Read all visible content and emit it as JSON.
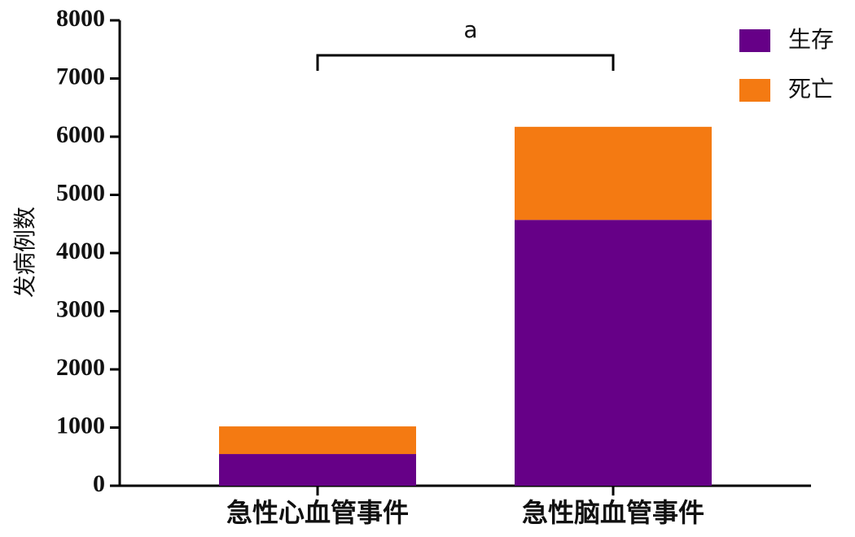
{
  "chart_data": {
    "type": "bar",
    "stacked": true,
    "y_label": "发病例数",
    "annotation": "a",
    "categories": [
      "急性心血管事件",
      "急性脑血管事件"
    ],
    "series": [
      {
        "name": "生存",
        "color": "#660087",
        "values": [
          545,
          4570
        ]
      },
      {
        "name": "死亡",
        "color": "#f47a12",
        "values": [
          475,
          1600
        ]
      }
    ],
    "ylim": [
      0,
      8000
    ],
    "yticks": [
      0,
      1000,
      2000,
      3000,
      4000,
      5000,
      6000,
      7000,
      8000
    ],
    "legend": "top-right"
  }
}
